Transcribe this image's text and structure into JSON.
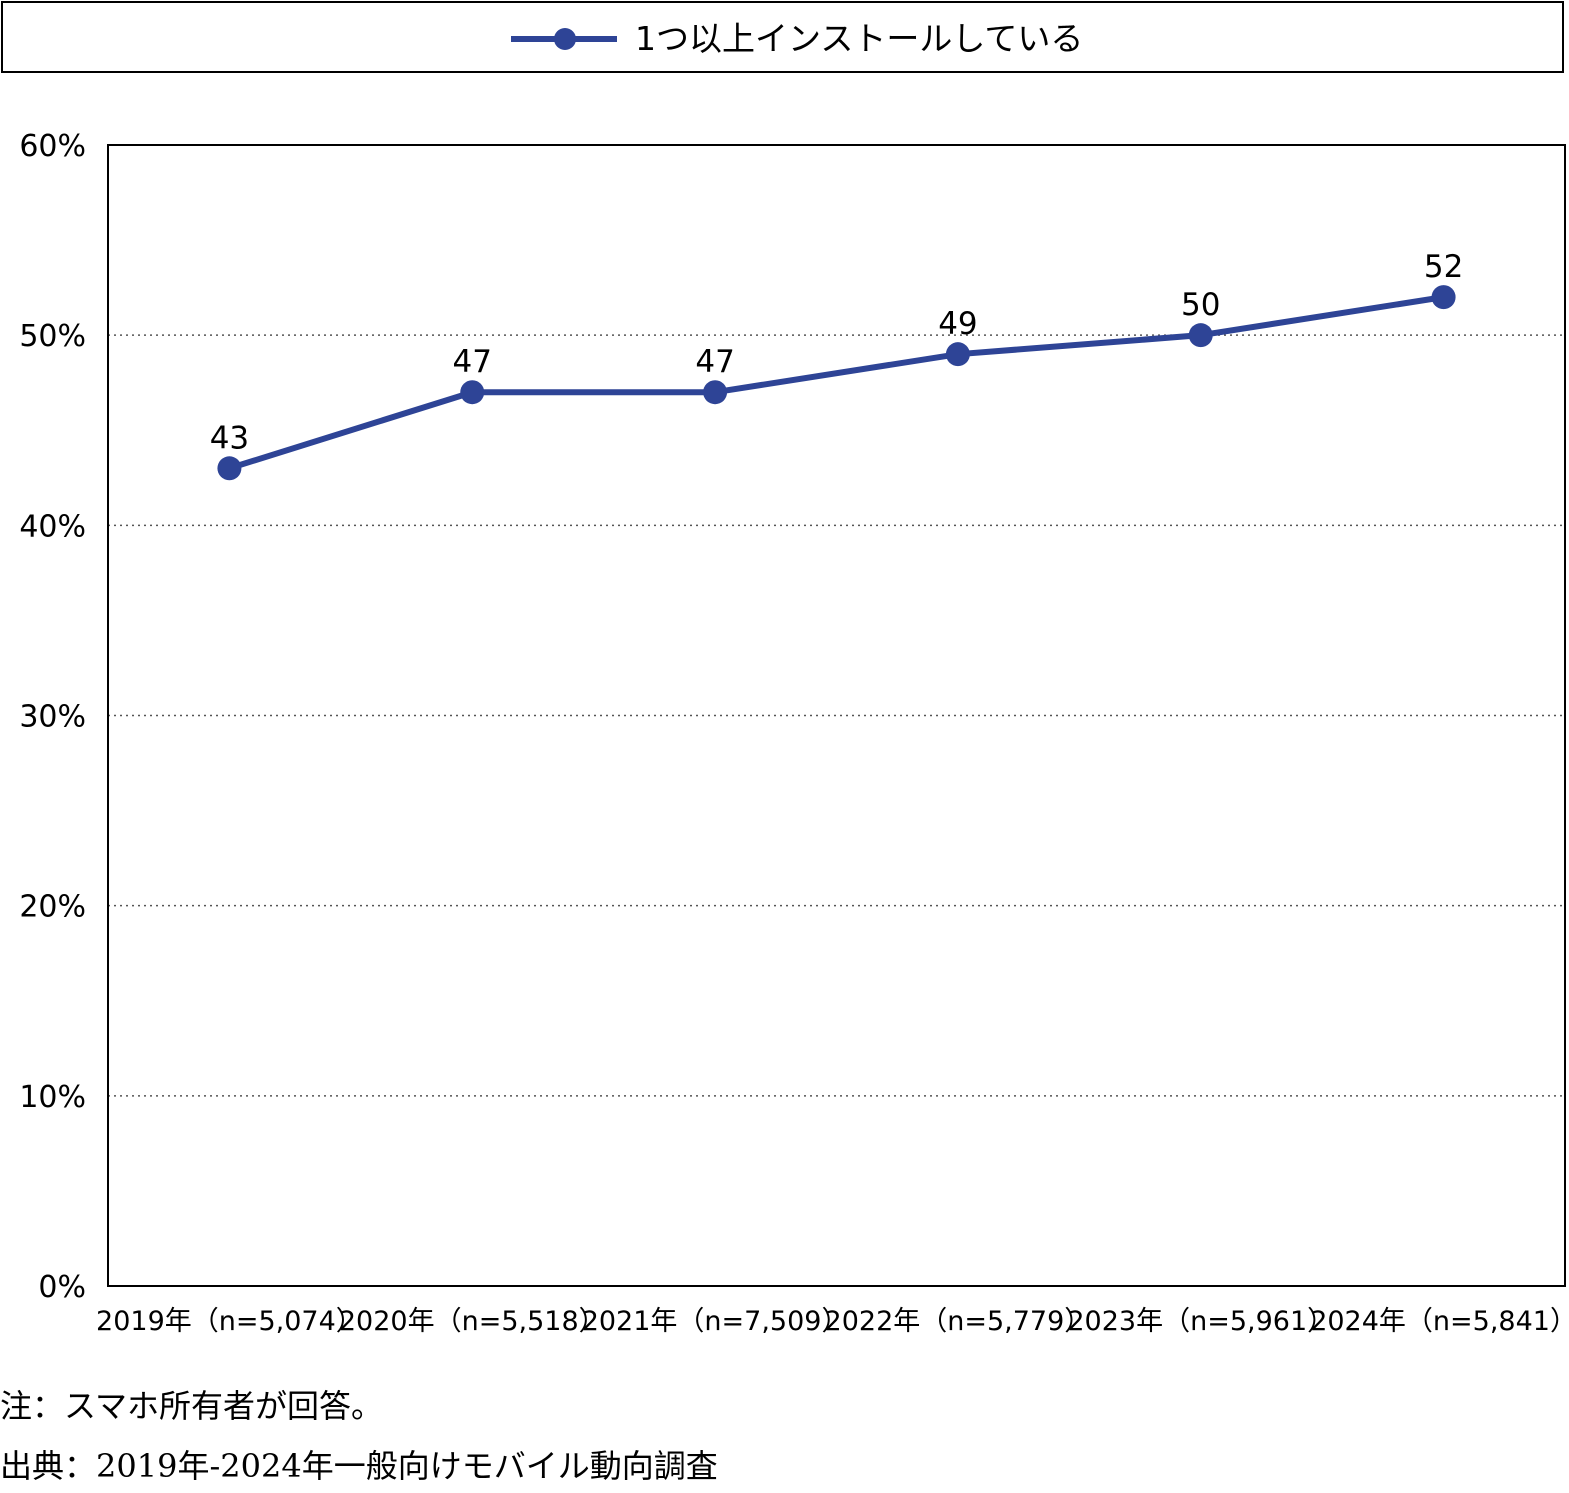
{
  "legend": {
    "label": "1つ以上インストールしている"
  },
  "colors": {
    "series": "#2E4496",
    "axis": "#000000",
    "grid": "#555555"
  },
  "chart_data": {
    "type": "line",
    "categories": [
      "2019年（n=5,074）",
      "2020年（n=5,518）",
      "2021年（n=7,509）",
      "2022年（n=5,779）",
      "2023年（n=5,961）",
      "2024年（n=5,841）"
    ],
    "series": [
      {
        "name": "1つ以上インストールしている",
        "values": [
          43,
          47,
          47,
          49,
          50,
          52
        ]
      }
    ],
    "ylim": [
      0,
      60
    ],
    "yticks": [
      "0%",
      "10%",
      "20%",
      "30%",
      "40%",
      "50%",
      "60%"
    ],
    "grid": true,
    "grid_style": "dotted",
    "legend_position": "top",
    "data_labels": true
  },
  "notes": {
    "note": "注：スマホ所有者が回答。",
    "source": "出典：2019年-2024年一般向けモバイル動向調査"
  }
}
